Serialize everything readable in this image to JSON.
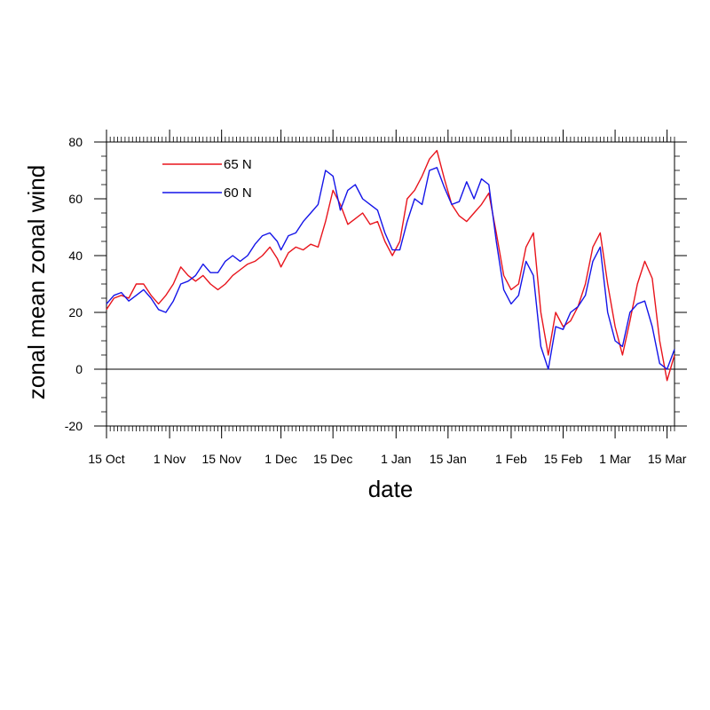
{
  "chart_data": {
    "type": "line",
    "xlabel": "date",
    "ylabel": "zonal mean zonal wind",
    "x_axis_type": "date",
    "x_range": [
      "Oct 15",
      "Mar 17"
    ],
    "x_ticks": [
      {
        "date": "Oct 15",
        "label": "15 Oct"
      },
      {
        "date": "Nov 1",
        "label": "1 Nov"
      },
      {
        "date": "Nov 15",
        "label": "15 Nov"
      },
      {
        "date": "Dec 1",
        "label": "1 Dec"
      },
      {
        "date": "Dec 15",
        "label": "15 Dec"
      },
      {
        "date": "Jan 1",
        "label": "1 Jan"
      },
      {
        "date": "Jan 15",
        "label": "15 Jan"
      },
      {
        "date": "Feb 1",
        "label": "1 Feb"
      },
      {
        "date": "Feb 15",
        "label": "15 Feb"
      },
      {
        "date": "Mar 1",
        "label": "1 Mar"
      },
      {
        "date": "Mar 15",
        "label": "15 Mar"
      }
    ],
    "ylim": [
      -20,
      80
    ],
    "y_ticks": [
      -20,
      0,
      20,
      40,
      60,
      80
    ],
    "reference_line": 0,
    "legend_position": "top-left",
    "series": [
      {
        "name": "65 N",
        "color": "#e8141c",
        "points": [
          [
            "Oct 15",
            21
          ],
          [
            "Oct 17",
            25
          ],
          [
            "Oct 19",
            26
          ],
          [
            "Oct 21",
            25
          ],
          [
            "Oct 23",
            30
          ],
          [
            "Oct 25",
            30
          ],
          [
            "Oct 27",
            26
          ],
          [
            "Oct 29",
            23
          ],
          [
            "Oct 31",
            26
          ],
          [
            "Nov 2",
            30
          ],
          [
            "Nov 4",
            36
          ],
          [
            "Nov 6",
            33
          ],
          [
            "Nov 8",
            31
          ],
          [
            "Nov 10",
            33
          ],
          [
            "Nov 12",
            30
          ],
          [
            "Nov 14",
            28
          ],
          [
            "Nov 16",
            30
          ],
          [
            "Nov 18",
            33
          ],
          [
            "Nov 20",
            35
          ],
          [
            "Nov 22",
            37
          ],
          [
            "Nov 24",
            38
          ],
          [
            "Nov 26",
            40
          ],
          [
            "Nov 28",
            43
          ],
          [
            "Nov 30",
            39
          ],
          [
            "Dec 1",
            36
          ],
          [
            "Dec 3",
            41
          ],
          [
            "Dec 5",
            43
          ],
          [
            "Dec 7",
            42
          ],
          [
            "Dec 9",
            44
          ],
          [
            "Dec 11",
            43
          ],
          [
            "Dec 13",
            52
          ],
          [
            "Dec 15",
            63
          ],
          [
            "Dec 17",
            58
          ],
          [
            "Dec 19",
            51
          ],
          [
            "Dec 21",
            53
          ],
          [
            "Dec 23",
            55
          ],
          [
            "Dec 25",
            51
          ],
          [
            "Dec 27",
            52
          ],
          [
            "Dec 29",
            45
          ],
          [
            "Dec 31",
            40
          ],
          [
            "Jan 2",
            45
          ],
          [
            "Jan 4",
            60
          ],
          [
            "Jan 6",
            63
          ],
          [
            "Jan 8",
            68
          ],
          [
            "Jan 10",
            74
          ],
          [
            "Jan 12",
            77
          ],
          [
            "Jan 14",
            67
          ],
          [
            "Jan 16",
            58
          ],
          [
            "Jan 18",
            54
          ],
          [
            "Jan 20",
            52
          ],
          [
            "Jan 22",
            55
          ],
          [
            "Jan 24",
            58
          ],
          [
            "Jan 26",
            62
          ],
          [
            "Jan 28",
            48
          ],
          [
            "Jan 30",
            33
          ],
          [
            "Feb 1",
            28
          ],
          [
            "Feb 3",
            30
          ],
          [
            "Feb 5",
            43
          ],
          [
            "Feb 7",
            48
          ],
          [
            "Feb 9",
            20
          ],
          [
            "Feb 11",
            5
          ],
          [
            "Feb 13",
            20
          ],
          [
            "Feb 15",
            15
          ],
          [
            "Feb 17",
            17
          ],
          [
            "Feb 19",
            22
          ],
          [
            "Feb 21",
            30
          ],
          [
            "Feb 23",
            43
          ],
          [
            "Feb 25",
            48
          ],
          [
            "Feb 27",
            30
          ],
          [
            "Mar 1",
            15
          ],
          [
            "Mar 3",
            5
          ],
          [
            "Mar 5",
            17
          ],
          [
            "Mar 7",
            30
          ],
          [
            "Mar 9",
            38
          ],
          [
            "Mar 11",
            32
          ],
          [
            "Mar 13",
            10
          ],
          [
            "Mar 15",
            -4
          ],
          [
            "Mar 17",
            5
          ]
        ]
      },
      {
        "name": "60 N",
        "color": "#1414e8",
        "points": [
          [
            "Oct 15",
            23
          ],
          [
            "Oct 17",
            26
          ],
          [
            "Oct 19",
            27
          ],
          [
            "Oct 21",
            24
          ],
          [
            "Oct 23",
            26
          ],
          [
            "Oct 25",
            28
          ],
          [
            "Oct 27",
            25
          ],
          [
            "Oct 29",
            21
          ],
          [
            "Oct 31",
            20
          ],
          [
            "Nov 2",
            24
          ],
          [
            "Nov 4",
            30
          ],
          [
            "Nov 6",
            31
          ],
          [
            "Nov 8",
            33
          ],
          [
            "Nov 10",
            37
          ],
          [
            "Nov 12",
            34
          ],
          [
            "Nov 14",
            34
          ],
          [
            "Nov 16",
            38
          ],
          [
            "Nov 18",
            40
          ],
          [
            "Nov 20",
            38
          ],
          [
            "Nov 22",
            40
          ],
          [
            "Nov 24",
            44
          ],
          [
            "Nov 26",
            47
          ],
          [
            "Nov 28",
            48
          ],
          [
            "Nov 30",
            45
          ],
          [
            "Dec 1",
            42
          ],
          [
            "Dec 3",
            47
          ],
          [
            "Dec 5",
            48
          ],
          [
            "Dec 7",
            52
          ],
          [
            "Dec 9",
            55
          ],
          [
            "Dec 11",
            58
          ],
          [
            "Dec 13",
            70
          ],
          [
            "Dec 15",
            68
          ],
          [
            "Dec 17",
            56
          ],
          [
            "Dec 19",
            63
          ],
          [
            "Dec 21",
            65
          ],
          [
            "Dec 23",
            60
          ],
          [
            "Dec 25",
            58
          ],
          [
            "Dec 27",
            56
          ],
          [
            "Dec 29",
            48
          ],
          [
            "Dec 31",
            42
          ],
          [
            "Jan 2",
            42
          ],
          [
            "Jan 4",
            52
          ],
          [
            "Jan 6",
            60
          ],
          [
            "Jan 8",
            58
          ],
          [
            "Jan 10",
            70
          ],
          [
            "Jan 12",
            71
          ],
          [
            "Jan 14",
            64
          ],
          [
            "Jan 16",
            58
          ],
          [
            "Jan 18",
            59
          ],
          [
            "Jan 20",
            66
          ],
          [
            "Jan 22",
            60
          ],
          [
            "Jan 24",
            67
          ],
          [
            "Jan 26",
            65
          ],
          [
            "Jan 28",
            45
          ],
          [
            "Jan 30",
            28
          ],
          [
            "Feb 1",
            23
          ],
          [
            "Feb 3",
            26
          ],
          [
            "Feb 5",
            38
          ],
          [
            "Feb 7",
            33
          ],
          [
            "Feb 9",
            8
          ],
          [
            "Feb 11",
            0
          ],
          [
            "Feb 13",
            15
          ],
          [
            "Feb 15",
            14
          ],
          [
            "Feb 17",
            20
          ],
          [
            "Feb 19",
            22
          ],
          [
            "Feb 21",
            26
          ],
          [
            "Feb 23",
            38
          ],
          [
            "Feb 25",
            43
          ],
          [
            "Feb 27",
            20
          ],
          [
            "Mar 1",
            10
          ],
          [
            "Mar 3",
            8
          ],
          [
            "Mar 5",
            20
          ],
          [
            "Mar 7",
            23
          ],
          [
            "Mar 9",
            24
          ],
          [
            "Mar 11",
            15
          ],
          [
            "Mar 13",
            2
          ],
          [
            "Mar 15",
            0
          ],
          [
            "Mar 17",
            7
          ]
        ]
      }
    ]
  }
}
